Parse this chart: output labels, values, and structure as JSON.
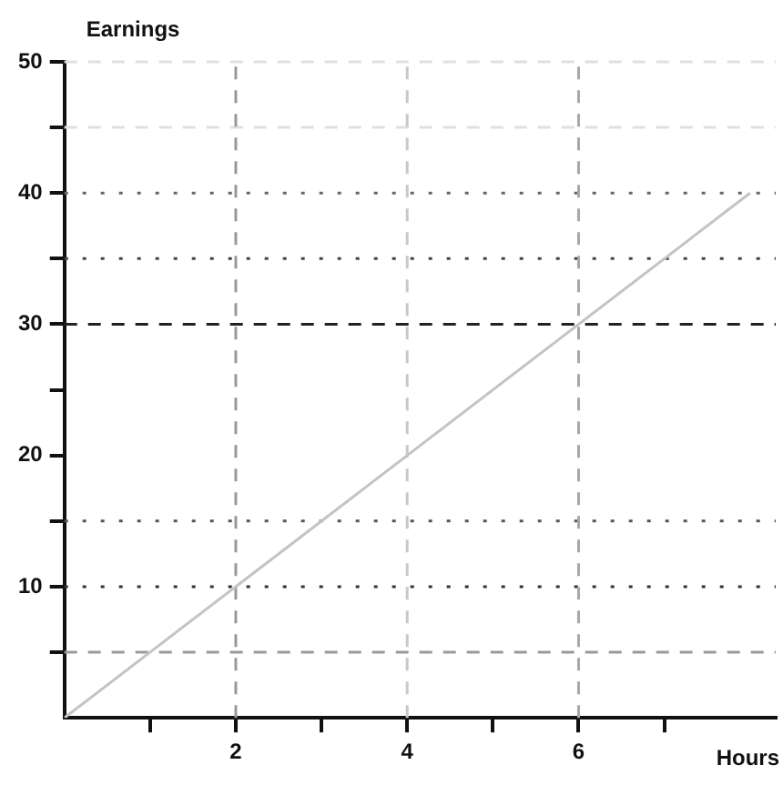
{
  "chart_data": {
    "type": "line",
    "xlabel": "Hours",
    "ylabel": "Earnings",
    "x": [
      0,
      8
    ],
    "series": [
      {
        "color": "#c4c4c4",
        "values": [
          0,
          40
        ]
      }
    ],
    "xlim": [
      0,
      8.3
    ],
    "xticks": [
      {
        "value": 1,
        "label": null
      },
      2,
      {
        "value": 3,
        "label": null
      },
      4,
      {
        "value": 5,
        "label": null
      },
      6,
      {
        "value": 7,
        "label": null
      }
    ],
    "ylim": [
      0,
      50
    ],
    "yticks": [
      {
        "value": 5,
        "label": null
      },
      10,
      {
        "value": 15,
        "label": null
      },
      20,
      {
        "value": 25,
        "label": null
      },
      30,
      {
        "value": 35,
        "label": null
      },
      40,
      {
        "value": 45,
        "label": null
      },
      50
    ],
    "ref_lines": [
      {
        "axis": "y",
        "value": 5,
        "color": "#9a9a9a",
        "line_style": "dashed"
      },
      {
        "axis": "y",
        "value": 10,
        "color": "#333333",
        "line_style": "dotted"
      },
      {
        "axis": "y",
        "value": 15,
        "color": "#555555",
        "line_style": "dotted"
      },
      {
        "axis": "y",
        "value": 30,
        "color": "#222222",
        "line_style": "dashed"
      },
      {
        "axis": "y",
        "value": 35,
        "color": "#444444",
        "line_style": "dotted"
      },
      {
        "axis": "y",
        "value": 40,
        "color": "#666666",
        "line_style": "dotted"
      },
      {
        "axis": "y",
        "value": 45,
        "color": "#e0e0e0",
        "line_style": "dashed"
      },
      {
        "axis": "y",
        "value": 50,
        "color": "#e0e0e0",
        "line_style": "dashed"
      },
      {
        "axis": "x",
        "value": 2,
        "color": "#999999",
        "line_style": "dashed"
      },
      {
        "axis": "x",
        "value": 4,
        "color": "#c8c8c8",
        "line_style": "dashed"
      },
      {
        "axis": "x",
        "value": 6,
        "color": "#a8a8a8",
        "line_style": "dashed"
      }
    ],
    "grid": false,
    "legend": false,
    "marker": "none",
    "line_style": "solid"
  }
}
